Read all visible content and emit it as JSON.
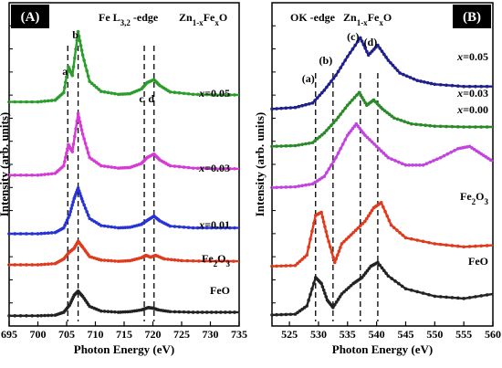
{
  "chart_data": [
    {
      "type": "line",
      "panel_label": "(A)",
      "title_left": "Fe L",
      "title_left_sub": "3,2",
      "title_left_tail": " -edge",
      "title_right": "Zn",
      "title_right_sub1": "1-x",
      "title_right_mid": "Fe",
      "title_right_sub2": "x",
      "title_right_tail": "O",
      "xlabel": "Photon Energy (eV)",
      "ylabel": "Intensity (arb. units)",
      "xlim": [
        695,
        735
      ],
      "xticks": [
        "695",
        "700",
        "705",
        "710",
        "715",
        "720",
        "725",
        "730",
        "735"
      ],
      "grid": false,
      "peak_labels": [
        {
          "text": "a",
          "x": 705.2
        },
        {
          "text": "b",
          "x": 707.0
        },
        {
          "text": "c",
          "x": 718.5
        },
        {
          "text": "d",
          "x": 720.2
        }
      ],
      "dashed_lines_x": [
        705.2,
        707.0,
        718.5,
        720.2
      ],
      "series": [
        {
          "name": "FeO",
          "color": "#222222",
          "label_parts": [
            "FeO"
          ],
          "offset": 0.05,
          "x": [
            695,
            700,
            703,
            704.5,
            705.5,
            706.3,
            707,
            707.8,
            709,
            711,
            714,
            716,
            718,
            719.2,
            720,
            721,
            723,
            727,
            731,
            735
          ],
          "y": [
            0.0,
            0.0,
            0.01,
            0.06,
            0.18,
            0.35,
            0.42,
            0.33,
            0.16,
            0.08,
            0.06,
            0.07,
            0.1,
            0.14,
            0.13,
            0.1,
            0.07,
            0.06,
            0.06,
            0.06
          ]
        },
        {
          "name": "Fe2O3",
          "color": "#e03a1e",
          "label_parts": [
            "Fe",
            "2",
            "O",
            "3"
          ],
          "offset": 0.92,
          "x": [
            695,
            700,
            703,
            704.5,
            705.5,
            706.3,
            707,
            707.8,
            709,
            711,
            714,
            716,
            718,
            718.8,
            719.6,
            720.5,
            722,
            725,
            730,
            735
          ],
          "y": [
            0.0,
            0.0,
            0.02,
            0.1,
            0.22,
            0.28,
            0.4,
            0.3,
            0.14,
            0.08,
            0.06,
            0.07,
            0.12,
            0.16,
            0.13,
            0.16,
            0.1,
            0.07,
            0.06,
            0.06
          ]
        },
        {
          "name": "x=0.01",
          "color": "#2833d6",
          "label_parts": [
            "x",
            "=0.01"
          ],
          "offset": 1.45,
          "x": [
            695,
            700,
            703,
            704.5,
            705.5,
            706.3,
            707,
            707.8,
            709,
            711,
            714,
            716,
            718,
            719.2,
            720.2,
            721.2,
            723,
            727,
            731,
            735
          ],
          "y": [
            0.0,
            0.0,
            0.02,
            0.1,
            0.32,
            0.6,
            0.78,
            0.55,
            0.26,
            0.14,
            0.1,
            0.11,
            0.16,
            0.24,
            0.3,
            0.22,
            0.13,
            0.1,
            0.1,
            0.1
          ]
        },
        {
          "name": "x=0.03",
          "color": "#d63ad6",
          "label_parts": [
            "x",
            "=0.03"
          ],
          "offset": 2.45,
          "x": [
            695,
            700,
            703,
            704.5,
            705.3,
            706.0,
            707,
            707.8,
            709,
            711,
            714,
            716,
            718,
            719.0,
            720.2,
            721.2,
            723,
            727,
            731,
            735
          ],
          "y": [
            0.0,
            0.0,
            0.03,
            0.16,
            0.52,
            0.4,
            1.05,
            0.7,
            0.3,
            0.16,
            0.12,
            0.13,
            0.2,
            0.3,
            0.36,
            0.26,
            0.16,
            0.12,
            0.11,
            0.11
          ]
        },
        {
          "name": "x=0.05",
          "color": "#2a9d2a",
          "label_parts": [
            "x",
            "=0.05"
          ],
          "offset": 3.7,
          "x": [
            695,
            700,
            703,
            704.5,
            705.3,
            706.0,
            707,
            707.8,
            709,
            711,
            714,
            716,
            718,
            719.0,
            720.2,
            721.2,
            723,
            727,
            731,
            735
          ],
          "y": [
            0.0,
            0.0,
            0.03,
            0.16,
            0.6,
            0.45,
            1.2,
            0.8,
            0.35,
            0.18,
            0.13,
            0.14,
            0.22,
            0.33,
            0.38,
            0.28,
            0.17,
            0.13,
            0.12,
            0.12
          ]
        }
      ]
    },
    {
      "type": "line",
      "panel_label": "(B)",
      "title_left": "OK -edge",
      "title_right": "Zn",
      "title_right_sub1": "1-x",
      "title_right_mid": "Fe",
      "title_right_sub2": "x",
      "title_right_tail": "O",
      "xlabel": "Photon Energy (eV)",
      "ylabel": "Intensity (arb. units)",
      "xlim": [
        522,
        560
      ],
      "xticks": [
        "525",
        "530",
        "535",
        "540",
        "545",
        "550",
        "555",
        "560"
      ],
      "grid": false,
      "peak_labels": [
        {
          "text": "(a)",
          "x": 529.5
        },
        {
          "text": "(b)",
          "x": 532.5
        },
        {
          "text": "(c)",
          "x": 537.2
        },
        {
          "text": "(d)",
          "x": 540.2
        }
      ],
      "dashed_lines_x": [
        529.5,
        532.5,
        537.2,
        540.2
      ],
      "series": [
        {
          "name": "FeO",
          "color": "#222222",
          "label_parts": [
            "FeO"
          ],
          "offset": 0.05,
          "x": [
            522,
            526,
            528,
            529.5,
            530.5,
            531.5,
            532.5,
            534,
            536,
            537.5,
            539,
            540.2,
            542,
            545,
            550,
            555,
            560
          ],
          "y": [
            0.0,
            0.01,
            0.12,
            0.5,
            0.42,
            0.2,
            0.1,
            0.28,
            0.42,
            0.5,
            0.65,
            0.7,
            0.52,
            0.35,
            0.25,
            0.22,
            0.28
          ]
        },
        {
          "name": "Fe2O3",
          "color": "#e03a1e",
          "label_parts": [
            "Fe",
            "2",
            "O",
            "3"
          ],
          "offset": 0.7,
          "x": [
            522,
            526,
            528,
            529.5,
            530.5,
            531.5,
            532.8,
            534,
            536,
            538,
            539.5,
            540.8,
            542.5,
            545,
            550,
            555,
            560
          ],
          "y": [
            0.0,
            0.01,
            0.15,
            0.68,
            0.72,
            0.4,
            0.05,
            0.3,
            0.45,
            0.6,
            0.78,
            0.85,
            0.55,
            0.38,
            0.3,
            0.26,
            0.28
          ]
        },
        {
          "name": "x=0.00",
          "color": "#c243e0",
          "label_parts": [
            "x",
            "=0.00"
          ],
          "offset": 1.75,
          "x": [
            522,
            526,
            529,
            531,
            533,
            535,
            536.5,
            538,
            540,
            542,
            545,
            548,
            551,
            554,
            556,
            558,
            560
          ],
          "y": [
            0.0,
            0.01,
            0.05,
            0.15,
            0.4,
            0.7,
            0.85,
            0.7,
            0.55,
            0.4,
            0.3,
            0.3,
            0.4,
            0.52,
            0.55,
            0.45,
            0.35
          ]
        },
        {
          "name": "x=0.03",
          "color": "#2a8a2a",
          "label_parts": [
            "x",
            "=0.03"
          ],
          "offset": 2.3,
          "x": [
            522,
            526,
            529,
            531,
            533,
            535,
            537,
            538.3,
            539.5,
            541,
            543,
            546,
            550,
            555,
            560
          ],
          "y": [
            0.0,
            0.01,
            0.05,
            0.18,
            0.35,
            0.55,
            0.72,
            0.55,
            0.62,
            0.5,
            0.38,
            0.3,
            0.27,
            0.26,
            0.26
          ]
        },
        {
          "name": "x=0.05",
          "color": "#1f1f8c",
          "label_parts": [
            "x",
            "=0.05"
          ],
          "offset": 2.8,
          "x": [
            522,
            526,
            529,
            531,
            533,
            535,
            537.2,
            538.6,
            540.2,
            542,
            544,
            547,
            550,
            555,
            560
          ],
          "y": [
            0.0,
            0.02,
            0.08,
            0.25,
            0.45,
            0.7,
            0.95,
            0.72,
            0.85,
            0.65,
            0.48,
            0.38,
            0.33,
            0.3,
            0.3
          ]
        }
      ]
    }
  ]
}
